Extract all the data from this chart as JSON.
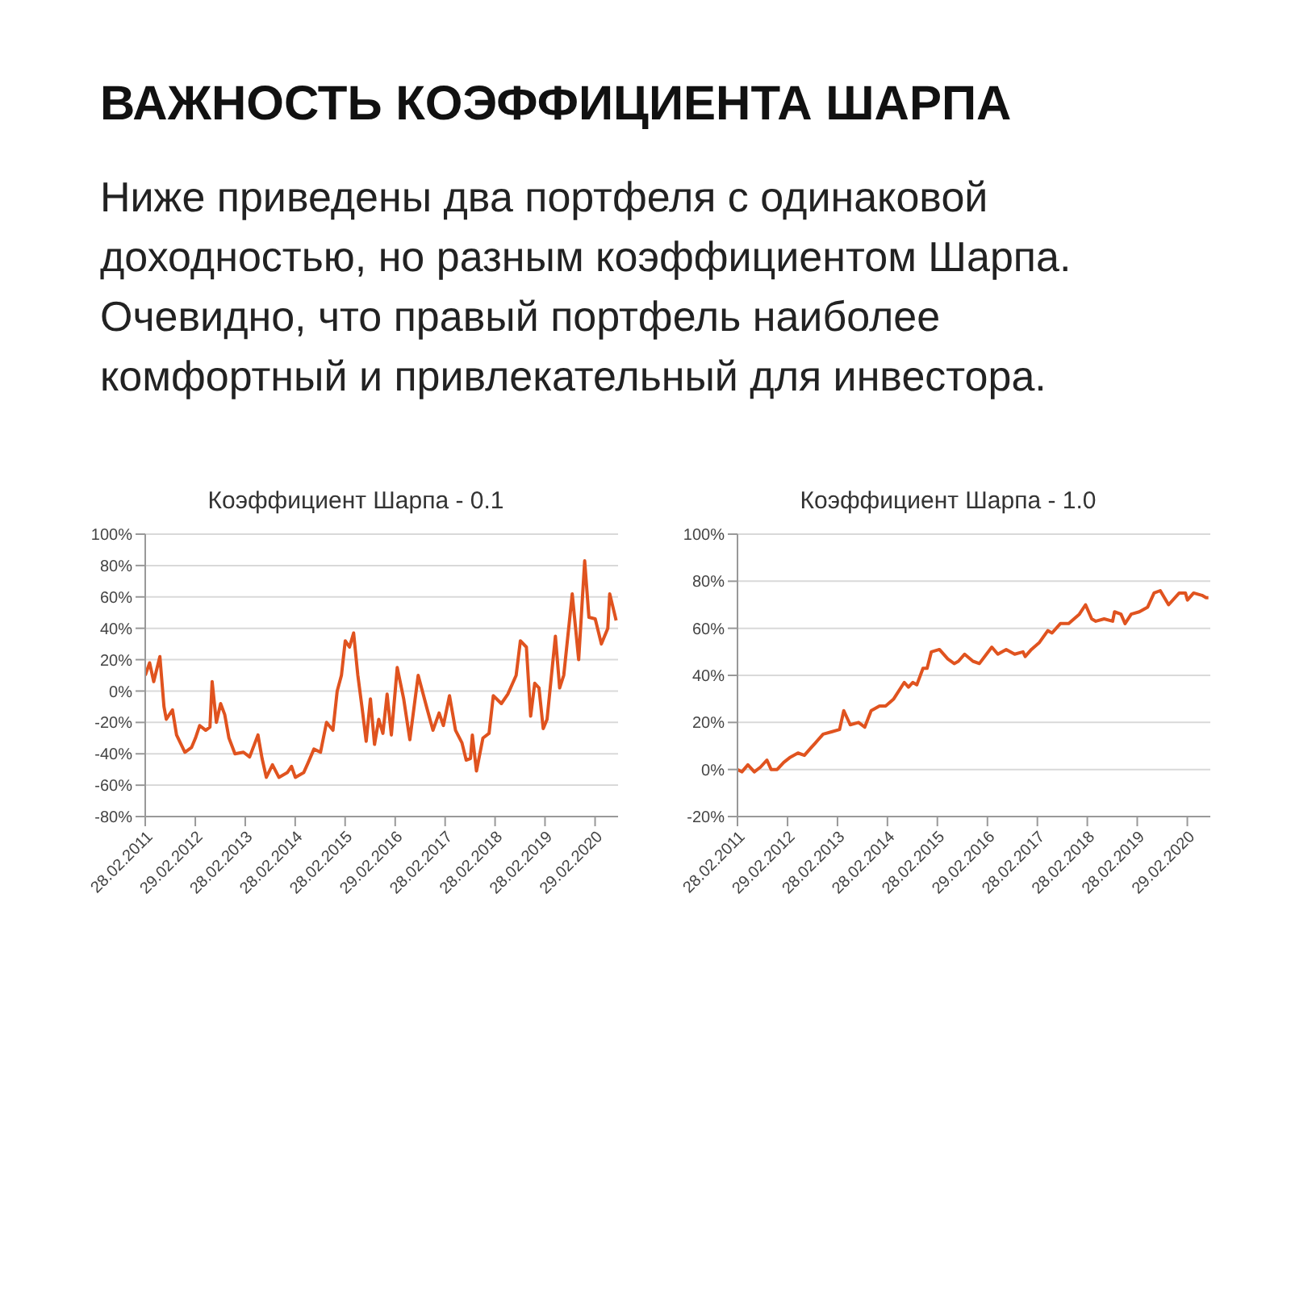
{
  "chart_data": [
    {
      "type": "line",
      "title": "Коэффициент Шарпа - 0.1",
      "annotations": [
        "ВАЖНОСТЬ КОЭФФИЦИЕНТА ШАРПА",
        "Ниже приведены два портфеля с одинаковой доходностью, но разным коэффициентом Шарпа. Очевидно, что правый портфель наиболее комфортный и привлекательный для инвестора."
      ],
      "x": [
        "2011-02-28",
        "2011-04-01",
        "2011-05-01",
        "2011-06-15",
        "2011-07-15",
        "2011-08-01",
        "2011-09-15",
        "2011-10-15",
        "2011-12-15",
        "2012-02-01",
        "2012-03-01",
        "2012-04-01",
        "2012-05-15",
        "2012-06-15",
        "2012-07-01",
        "2012-08-01",
        "2012-09-01",
        "2012-10-01",
        "2012-11-01",
        "2012-12-15",
        "2013-02-15",
        "2013-04-01",
        "2013-06-01",
        "2013-07-01",
        "2013-08-01",
        "2013-09-15",
        "2013-11-01",
        "2014-01-01",
        "2014-02-01",
        "2014-03-01",
        "2014-05-01",
        "2014-06-01",
        "2014-07-15",
        "2014-09-01",
        "2014-10-15",
        "2014-12-01",
        "2015-01-01",
        "2015-02-01",
        "2015-03-01",
        "2015-04-01",
        "2015-05-01",
        "2015-06-01",
        "2015-07-01",
        "2015-08-01",
        "2015-09-01",
        "2015-10-01",
        "2015-11-01",
        "2015-12-01",
        "2016-01-01",
        "2016-02-01",
        "2016-03-15",
        "2016-05-01",
        "2016-06-15",
        "2016-08-15",
        "2016-10-15",
        "2016-12-01",
        "2017-01-15",
        "2017-02-15",
        "2017-04-01",
        "2017-05-15",
        "2017-07-01",
        "2017-08-01",
        "2017-09-01",
        "2017-09-15",
        "2017-10-15",
        "2017-12-01",
        "2018-01-15",
        "2018-02-15",
        "2018-04-15",
        "2018-06-01",
        "2018-08-01",
        "2018-09-01",
        "2018-10-15",
        "2018-11-15",
        "2018-12-15",
        "2019-01-15",
        "2019-02-15",
        "2019-03-15",
        "2019-05-15",
        "2019-06-15",
        "2019-07-15",
        "2019-09-01",
        "2019-09-15",
        "2019-11-01",
        "2019-12-15",
        "2020-01-15",
        "2020-03-01",
        "2020-04-15",
        "2020-06-01",
        "2020-06-15",
        "2020-08-01"
      ],
      "series": [
        {
          "color": "#e0531f",
          "values": [
            10,
            18,
            6,
            22,
            -10,
            -18,
            -12,
            -28,
            -39,
            -36,
            -30,
            -22,
            -25,
            -23,
            6,
            -20,
            -8,
            -15,
            -30,
            -40,
            -39,
            -42,
            -28,
            -43,
            -55,
            -47,
            -55,
            -52,
            -48,
            -55,
            -52,
            -46,
            -37,
            -39,
            -20,
            -25,
            0,
            10,
            32,
            28,
            37,
            10,
            -10,
            -32,
            -5,
            -34,
            -18,
            -27,
            -2,
            -28,
            15,
            -5,
            -31,
            10,
            -10,
            -25,
            -14,
            -22,
            -3,
            -25,
            -33,
            -44,
            -43,
            -28,
            -51,
            -30,
            -27,
            -3,
            -8,
            -2,
            10,
            32,
            28,
            -16,
            5,
            2,
            -24,
            -18,
            35,
            2,
            10,
            50,
            62,
            20,
            83,
            47,
            46,
            30,
            40,
            62,
            45
          ]
        }
      ],
      "xlim": [
        "2011-02-28",
        "2020-08-15"
      ],
      "xticks": [
        {
          "value": "2011-02-28",
          "label": "28.02.2011"
        },
        {
          "value": "2012-02-29",
          "label": "29.02.2012"
        },
        {
          "value": "2013-02-28",
          "label": "28.02.2013"
        },
        {
          "value": "2014-02-28",
          "label": "28.02.2014"
        },
        {
          "value": "2015-02-28",
          "label": "28.02.2015"
        },
        {
          "value": "2016-02-29",
          "label": "29.02.2016"
        },
        {
          "value": "2017-02-28",
          "label": "28.02.2017"
        },
        {
          "value": "2018-02-28",
          "label": "28.02.2018"
        },
        {
          "value": "2019-02-28",
          "label": "28.02.2019"
        },
        {
          "value": "2020-02-29",
          "label": "29.02.2020"
        }
      ],
      "ylim": [
        -80,
        100
      ],
      "yticks": [
        {
          "value": -80,
          "label": "-80%"
        },
        {
          "value": -60,
          "label": "-60%"
        },
        {
          "value": -40,
          "label": "-40%"
        },
        {
          "value": -20,
          "label": "-20%"
        },
        {
          "value": 0,
          "label": "0%"
        },
        {
          "value": 20,
          "label": "20%"
        },
        {
          "value": 40,
          "label": "40%"
        },
        {
          "value": 60,
          "label": "60%"
        },
        {
          "value": 80,
          "label": "80%"
        },
        {
          "value": 100,
          "label": "100%"
        }
      ],
      "grid": "y",
      "legend": false
    },
    {
      "type": "line",
      "title": "Коэффициент Шарпа - 1.0",
      "x": [
        "2011-02-28",
        "2011-04-01",
        "2011-05-15",
        "2011-07-01",
        "2011-08-15",
        "2011-10-01",
        "2011-11-01",
        "2011-12-15",
        "2012-02-01",
        "2012-03-15",
        "2012-05-15",
        "2012-07-01",
        "2012-08-15",
        "2012-09-15",
        "2012-11-15",
        "2013-01-15",
        "2013-03-15",
        "2013-04-15",
        "2013-06-01",
        "2013-08-01",
        "2013-09-15",
        "2013-11-01",
        "2014-01-01",
        "2014-02-15",
        "2014-04-15",
        "2014-07-01",
        "2014-08-01",
        "2014-09-01",
        "2014-10-01",
        "2014-11-15",
        "2014-12-15",
        "2015-01-15",
        "2015-03-15",
        "2015-05-15",
        "2015-07-01",
        "2015-08-01",
        "2015-09-15",
        "2015-11-15",
        "2016-01-01",
        "2016-04-01",
        "2016-05-15",
        "2016-07-15",
        "2016-09-15",
        "2016-11-15",
        "2016-12-01",
        "2017-01-15",
        "2017-03-15",
        "2017-05-15",
        "2017-06-15",
        "2017-08-15",
        "2017-10-15",
        "2018-01-01",
        "2018-02-15",
        "2018-04-01",
        "2018-05-01",
        "2018-07-01",
        "2018-09-01",
        "2018-09-15",
        "2018-11-01",
        "2018-12-01",
        "2019-01-15",
        "2019-03-15",
        "2019-05-15",
        "2019-07-01",
        "2019-08-15",
        "2019-10-15",
        "2020-01-01",
        "2020-02-15",
        "2020-03-01",
        "2020-04-15",
        "2020-06-15",
        "2020-07-15",
        "2020-08-01"
      ],
      "series": [
        {
          "color": "#e0531f",
          "values": [
            0,
            -1,
            2,
            -1,
            1,
            4,
            0,
            0,
            3,
            5,
            7,
            6,
            9,
            11,
            15,
            16,
            17,
            25,
            19,
            20,
            18,
            25,
            27,
            27,
            30,
            37,
            35,
            37,
            36,
            43,
            43,
            50,
            51,
            47,
            45,
            46,
            49,
            46,
            45,
            52,
            49,
            51,
            49,
            50,
            48,
            51,
            54,
            59,
            58,
            62,
            62,
            66,
            70,
            64,
            63,
            64,
            63,
            67,
            66,
            62,
            66,
            67,
            69,
            75,
            76,
            70,
            75,
            75,
            72,
            75,
            74,
            73,
            73
          ]
        }
      ],
      "xlim": [
        "2011-02-28",
        "2020-08-15"
      ],
      "xticks": [
        {
          "value": "2011-02-28",
          "label": "28.02.2011"
        },
        {
          "value": "2012-02-29",
          "label": "29.02.2012"
        },
        {
          "value": "2013-02-28",
          "label": "28.02.2013"
        },
        {
          "value": "2014-02-28",
          "label": "28.02.2014"
        },
        {
          "value": "2015-02-28",
          "label": "28.02.2015"
        },
        {
          "value": "2016-02-29",
          "label": "29.02.2016"
        },
        {
          "value": "2017-02-28",
          "label": "28.02.2017"
        },
        {
          "value": "2018-02-28",
          "label": "28.02.2018"
        },
        {
          "value": "2019-02-28",
          "label": "28.02.2019"
        },
        {
          "value": "2020-02-29",
          "label": "29.02.2020"
        }
      ],
      "ylim": [
        -20,
        100
      ],
      "yticks": [
        {
          "value": -20,
          "label": "-20%"
        },
        {
          "value": 0,
          "label": "0%"
        },
        {
          "value": 20,
          "label": "20%"
        },
        {
          "value": 40,
          "label": "40%"
        },
        {
          "value": 60,
          "label": "60%"
        },
        {
          "value": 80,
          "label": "80%"
        },
        {
          "value": 100,
          "label": "100%"
        }
      ],
      "grid": "y",
      "legend": false
    }
  ]
}
